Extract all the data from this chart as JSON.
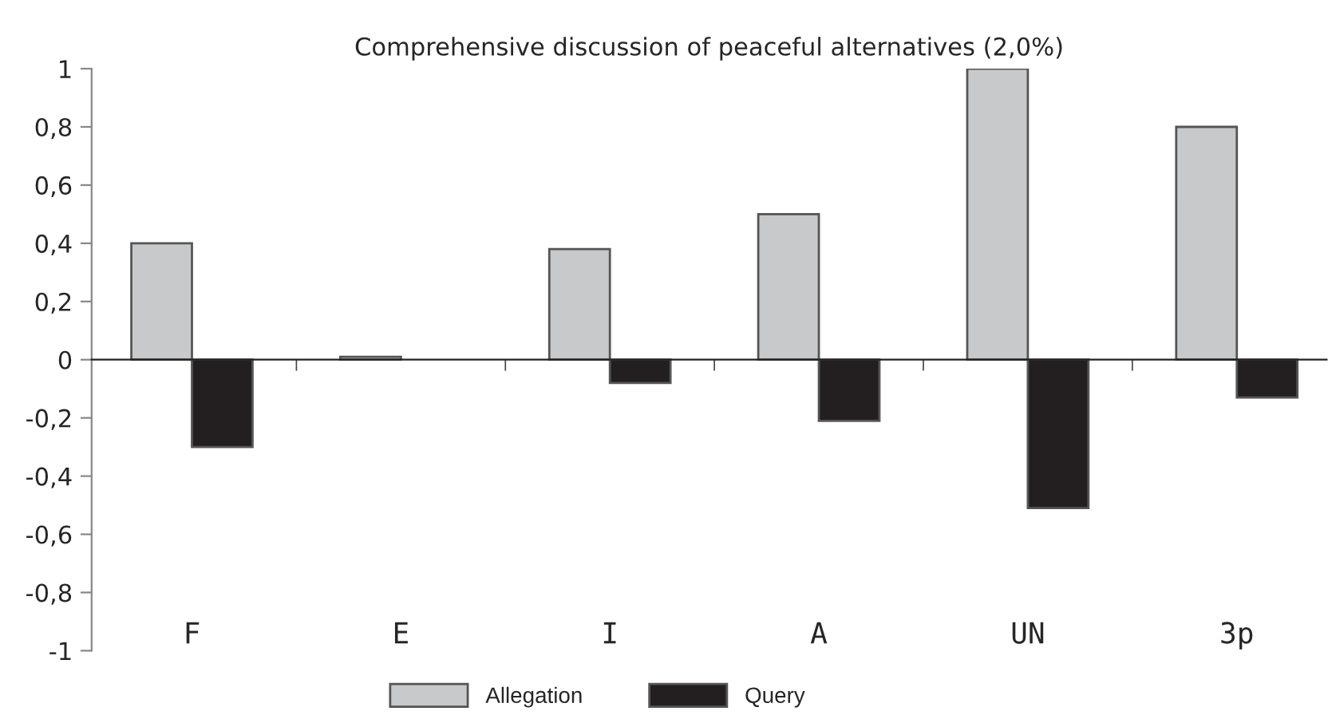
{
  "chart_data": {
    "type": "bar",
    "title": "Comprehensive discussion of peaceful alternatives (2,0%)",
    "categories": [
      "F",
      "E",
      "I",
      "A",
      "UN",
      "3p"
    ],
    "series": [
      {
        "name": "Allegation",
        "color": "#c8c9ca",
        "values": [
          0.4,
          0.01,
          0.38,
          0.5,
          1.0,
          0.8
        ]
      },
      {
        "name": "Query",
        "color": "#231f20",
        "values": [
          -0.3,
          null,
          -0.08,
          -0.21,
          -0.51,
          -0.13
        ]
      }
    ],
    "ylim": [
      -1,
      1
    ],
    "yticks": [
      {
        "value": -1,
        "label": "-1"
      },
      {
        "value": -0.8,
        "label": "-0,8"
      },
      {
        "value": -0.6,
        "label": "-0,6"
      },
      {
        "value": -0.4,
        "label": "-0,4"
      },
      {
        "value": -0.2,
        "label": "-0,2"
      },
      0,
      {
        "value": 0.2,
        "label": "0,2"
      },
      {
        "value": 0.4,
        "label": "0,4"
      },
      {
        "value": 0.6,
        "label": "0,6"
      },
      {
        "value": 0.8,
        "label": "0,8"
      },
      1
    ],
    "legend": "bottom"
  }
}
